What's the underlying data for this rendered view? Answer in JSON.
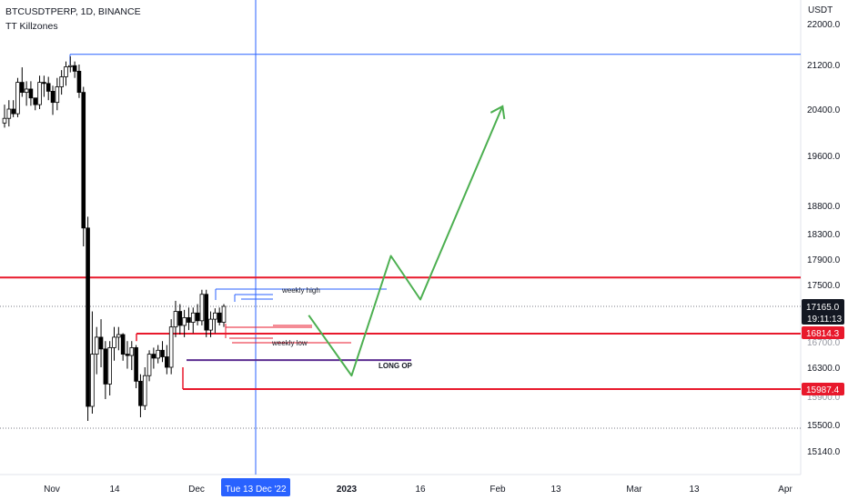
{
  "header": {
    "symbol": "BTCUSDTPERP, 1D, BINANCE",
    "indicator": "TT Killzones"
  },
  "price_axis": {
    "currency": "USDT",
    "ticks": [
      "22000.0",
      "21200.0",
      "20400.0",
      "19600.0",
      "18800.0",
      "18300.0",
      "17900.0",
      "17500.0",
      "16300.0",
      "15500.0",
      "15140.0"
    ],
    "partial_labels": [
      "16700.0",
      "15900.0"
    ]
  },
  "time_axis": {
    "ticks": [
      "Nov",
      "14",
      "Dec",
      "2023",
      "16",
      "Feb",
      "13",
      "Mar",
      "13",
      "Apr"
    ],
    "crosshair_label": "Tue 13 Dec '22"
  },
  "badges": {
    "current_price": "17165.0",
    "countdown": "19:11:13",
    "red_level_1": "16814.3",
    "red_level_2": "15987.4"
  },
  "annotations": {
    "weekly_high": "weekly high",
    "weekly_low": "weekly low",
    "long_op": "LONG OP"
  },
  "colors": {
    "up_candle": "#ffffff",
    "down_candle": "#000000",
    "red_level": "#e8192c",
    "blue_line": "#2962ff",
    "projection": "#4caf50",
    "purple_level": "#5c2d91",
    "crosshair": "#2962ff",
    "badge_dark": "#131722"
  },
  "chart_data": {
    "type": "candlestick",
    "symbol": "BTCUSDTPERP",
    "timeframe": "1D",
    "exchange": "BINANCE",
    "candles": [
      [
        20160,
        20480,
        20080,
        20240
      ],
      [
        20240,
        20560,
        20100,
        20400
      ],
      [
        20400,
        20560,
        20260,
        20320
      ],
      [
        20320,
        20960,
        20260,
        20880
      ],
      [
        20880,
        21150,
        20620,
        20700
      ],
      [
        20700,
        20900,
        20460,
        20760
      ],
      [
        20760,
        20900,
        20460,
        20600
      ],
      [
        20600,
        20600,
        20380,
        20480
      ],
      [
        20480,
        21000,
        20400,
        20880
      ],
      [
        20880,
        21000,
        20620,
        20860
      ],
      [
        20860,
        20980,
        20560,
        20720
      ],
      [
        20720,
        20820,
        20300,
        20520
      ],
      [
        20520,
        20960,
        20380,
        20800
      ],
      [
        20800,
        21100,
        20660,
        20980
      ],
      [
        20980,
        21260,
        20820,
        21160
      ],
      [
        21160,
        21360,
        21060,
        21180
      ],
      [
        21180,
        21260,
        20960,
        21080
      ],
      [
        21080,
        21200,
        20600,
        20700
      ],
      [
        20700,
        20800,
        18100,
        18400
      ],
      [
        18400,
        18600,
        15550,
        15750
      ],
      [
        15750,
        17100,
        15650,
        16500
      ],
      [
        16500,
        16900,
        16200,
        16760
      ],
      [
        16760,
        17000,
        16300,
        16580
      ],
      [
        16580,
        16700,
        15850,
        16060
      ],
      [
        16060,
        16700,
        15900,
        16600
      ],
      [
        16600,
        16900,
        16400,
        16760
      ],
      [
        16760,
        16900,
        16560,
        16800
      ],
      [
        16800,
        16820,
        16400,
        16500
      ],
      [
        16500,
        16700,
        16280,
        16480
      ],
      [
        16480,
        16700,
        16260,
        16600
      ],
      [
        16600,
        16640,
        16000,
        16100
      ],
      [
        16100,
        16200,
        15600,
        15760
      ],
      [
        15760,
        16300,
        15700,
        16180
      ],
      [
        16180,
        16560,
        16100,
        16500
      ],
      [
        16500,
        16600,
        16280,
        16440
      ],
      [
        16440,
        16640,
        16360,
        16560
      ],
      [
        16560,
        16700,
        16380,
        16460
      ],
      [
        16460,
        16640,
        16200,
        16300
      ],
      [
        16300,
        17000,
        16200,
        16900
      ],
      [
        16900,
        17250,
        16760,
        17100
      ],
      [
        17100,
        17200,
        16800,
        16920
      ],
      [
        16920,
        17120,
        16760,
        17020
      ],
      [
        17020,
        17150,
        16860,
        16960
      ],
      [
        16960,
        17150,
        16820,
        17080
      ],
      [
        17080,
        17200,
        16920,
        16980
      ],
      [
        16980,
        17420,
        16920,
        17350
      ],
      [
        17350,
        17420,
        16760,
        16860
      ],
      [
        16860,
        17100,
        16760,
        17000
      ],
      [
        17000,
        17140,
        16820,
        17080
      ],
      [
        17080,
        17150,
        16920,
        16960
      ],
      [
        16960,
        17200,
        16900,
        17165
      ]
    ],
    "levels": [
      {
        "price": 17610,
        "color": "#e8192c"
      },
      {
        "price": 16814.3,
        "color": "#e8192c"
      },
      {
        "price": 15987.4,
        "color": "#e8192c"
      },
      {
        "price": 16410,
        "color": "#5c2d91"
      },
      {
        "price": 21400,
        "color": "#2962ff"
      }
    ],
    "projection": [
      {
        "x": "2022-12-24",
        "y": 17050
      },
      {
        "x": "2023-01-02",
        "y": 16180
      },
      {
        "x": "2023-01-10",
        "y": 17950
      },
      {
        "x": "2023-01-16",
        "y": 17270
      },
      {
        "x": "2023-02-02",
        "y": 20450
      },
      {
        "x": "2023-02-03",
        "y": 20380
      }
    ],
    "current_price": 17165.0
  }
}
